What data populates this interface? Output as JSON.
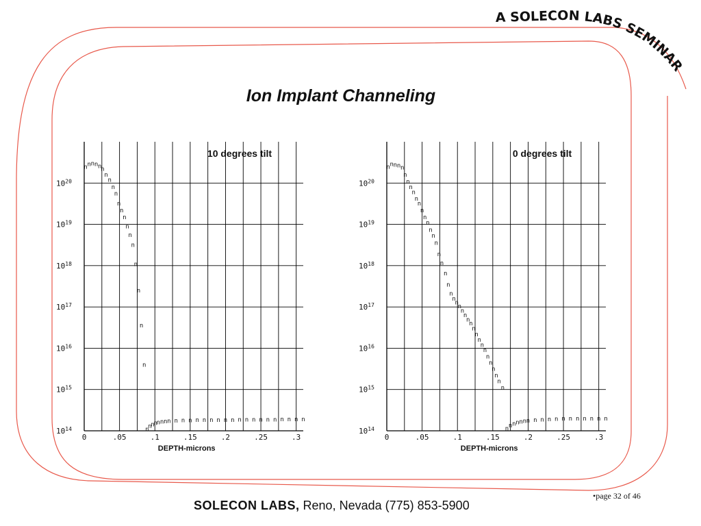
{
  "banner": {
    "text": "A SOLECON LABS SEMINAR"
  },
  "slide": {
    "title": "Ion Implant Channeling"
  },
  "colors": {
    "frame": "#e8584a",
    "grid": "#000000",
    "marker": "#6a1d1d"
  },
  "chart_data": [
    {
      "type": "scatter",
      "title": "10 degrees tilt",
      "xlabel": "DEPTH-microns",
      "ylabel": "",
      "marker": "n",
      "xlim": [
        0,
        0.31
      ],
      "ylog": true,
      "ylim": [
        100000000000000.0,
        1e+21
      ],
      "x_ticks": [
        "0",
        ".05",
        ".1",
        ".15",
        ".2",
        ".25",
        ".3"
      ],
      "y_ticks": [
        {
          "base": "10",
          "exp": "14"
        },
        {
          "base": "10",
          "exp": "15"
        },
        {
          "base": "10",
          "exp": "16"
        },
        {
          "base": "10",
          "exp": "17"
        },
        {
          "base": "10",
          "exp": "18"
        },
        {
          "base": "10",
          "exp": "19"
        },
        {
          "base": "10",
          "exp": "20"
        }
      ],
      "grid": true,
      "points": [
        [
          0.002,
          2.5e+20
        ],
        [
          0.007,
          2.9e+20
        ],
        [
          0.012,
          3e+20
        ],
        [
          0.017,
          2.9e+20
        ],
        [
          0.022,
          2.6e+20
        ],
        [
          0.026,
          2.2e+20
        ],
        [
          0.031,
          1.6e+20
        ],
        [
          0.036,
          1.2e+20
        ],
        [
          0.041,
          8e+19
        ],
        [
          0.045,
          5.6e+19
        ],
        [
          0.049,
          3.2e+19
        ],
        [
          0.053,
          2.2e+19
        ],
        [
          0.057,
          1.5e+19
        ],
        [
          0.061,
          9e+18
        ],
        [
          0.065,
          5.6e+18
        ],
        [
          0.069,
          3.2e+18
        ],
        [
          0.073,
          1.1e+18
        ],
        [
          0.077,
          2.5e+17
        ],
        [
          0.081,
          3.6e+16
        ],
        [
          0.085,
          4000000000000000.0
        ],
        [
          0.089,
          110000000000000.0
        ],
        [
          0.093,
          130000000000000.0
        ],
        [
          0.097,
          145000000000000.0
        ],
        [
          0.101,
          155000000000000.0
        ],
        [
          0.105,
          162000000000000.0
        ],
        [
          0.11,
          168000000000000.0
        ],
        [
          0.115,
          172000000000000.0
        ],
        [
          0.12,
          175000000000000.0
        ],
        [
          0.13,
          178000000000000.0
        ],
        [
          0.14,
          180000000000000.0
        ],
        [
          0.15,
          182000000000000.0
        ],
        [
          0.16,
          183000000000000.0
        ],
        [
          0.17,
          184000000000000.0
        ],
        [
          0.18,
          185000000000000.0
        ],
        [
          0.19,
          185000000000000.0
        ],
        [
          0.2,
          186000000000000.0
        ],
        [
          0.21,
          186000000000000.0
        ],
        [
          0.22,
          187000000000000.0
        ],
        [
          0.23,
          187000000000000.0
        ],
        [
          0.24,
          188000000000000.0
        ],
        [
          0.25,
          188000000000000.0
        ],
        [
          0.26,
          189000000000000.0
        ],
        [
          0.27,
          189000000000000.0
        ],
        [
          0.28,
          190000000000000.0
        ],
        [
          0.29,
          190000000000000.0
        ],
        [
          0.3,
          190000000000000.0
        ],
        [
          0.31,
          190000000000000.0
        ]
      ]
    },
    {
      "type": "scatter",
      "title": "0 degrees tilt",
      "xlabel": "DEPTH-microns",
      "ylabel": "",
      "marker": "n",
      "xlim": [
        0,
        0.31
      ],
      "ylog": true,
      "ylim": [
        100000000000000.0,
        1e+21
      ],
      "x_ticks": [
        "0",
        ".05",
        ".1",
        ".15",
        ".2",
        ".25",
        ".3"
      ],
      "y_ticks": [
        {
          "base": "10",
          "exp": "14"
        },
        {
          "base": "10",
          "exp": "15"
        },
        {
          "base": "10",
          "exp": "16"
        },
        {
          "base": "10",
          "exp": "17"
        },
        {
          "base": "10",
          "exp": "18"
        },
        {
          "base": "10",
          "exp": "19"
        },
        {
          "base": "10",
          "exp": "20"
        }
      ],
      "grid": true,
      "points": [
        [
          0.002,
          2.5e+20
        ],
        [
          0.007,
          2.9e+20
        ],
        [
          0.012,
          2.8e+20
        ],
        [
          0.017,
          2.7e+20
        ],
        [
          0.022,
          2.4e+20
        ],
        [
          0.026,
          1.6e+20
        ],
        [
          0.03,
          1.1e+20
        ],
        [
          0.034,
          8e+19
        ],
        [
          0.038,
          6e+19
        ],
        [
          0.042,
          4.2e+19
        ],
        [
          0.046,
          3.2e+19
        ],
        [
          0.05,
          2.2e+19
        ],
        [
          0.054,
          1.5e+19
        ],
        [
          0.058,
          1.1e+19
        ],
        [
          0.062,
          7.4e+18
        ],
        [
          0.066,
          5.3e+18
        ],
        [
          0.07,
          3.6e+18
        ],
        [
          0.074,
          1.9e+18
        ],
        [
          0.078,
          1.15e+18
        ],
        [
          0.083,
          6.5e+17
        ],
        [
          0.087,
          3.5e+17
        ],
        [
          0.091,
          2.1e+17
        ],
        [
          0.095,
          1.6e+17
        ],
        [
          0.099,
          1.3e+17
        ],
        [
          0.103,
          1.05e+17
        ],
        [
          0.107,
          8.2e+16
        ],
        [
          0.111,
          6.4e+16
        ],
        [
          0.115,
          5e+16
        ],
        [
          0.119,
          4e+16
        ],
        [
          0.123,
          3e+16
        ],
        [
          0.127,
          2.2e+16
        ],
        [
          0.131,
          1.6e+16
        ],
        [
          0.135,
          1.2e+16
        ],
        [
          0.139,
          9000000000000000.0
        ],
        [
          0.143,
          6300000000000000.0
        ],
        [
          0.147,
          4500000000000000.0
        ],
        [
          0.151,
          3200000000000000.0
        ],
        [
          0.155,
          2200000000000000.0
        ],
        [
          0.159,
          1600000000000000.0
        ],
        [
          0.164,
          1100000000000000.0
        ],
        [
          0.17,
          115000000000000.0
        ],
        [
          0.175,
          135000000000000.0
        ],
        [
          0.18,
          150000000000000.0
        ],
        [
          0.185,
          160000000000000.0
        ],
        [
          0.19,
          168000000000000.0
        ],
        [
          0.195,
          174000000000000.0
        ],
        [
          0.2,
          178000000000000.0
        ],
        [
          0.21,
          184000000000000.0
        ],
        [
          0.22,
          188000000000000.0
        ],
        [
          0.23,
          192000000000000.0
        ],
        [
          0.24,
          195000000000000.0
        ],
        [
          0.25,
          197000000000000.0
        ],
        [
          0.26,
          198000000000000.0
        ],
        [
          0.27,
          199000000000000.0
        ],
        [
          0.28,
          199000000000000.0
        ],
        [
          0.29,
          200000000000000.0
        ],
        [
          0.3,
          200000000000000.0
        ],
        [
          0.31,
          200000000000000.0
        ]
      ]
    }
  ],
  "footer": {
    "company": "SOLECON LABS,",
    "address": "Reno, Nevada (775) 853-5900",
    "page": "•page 32 of 46"
  }
}
